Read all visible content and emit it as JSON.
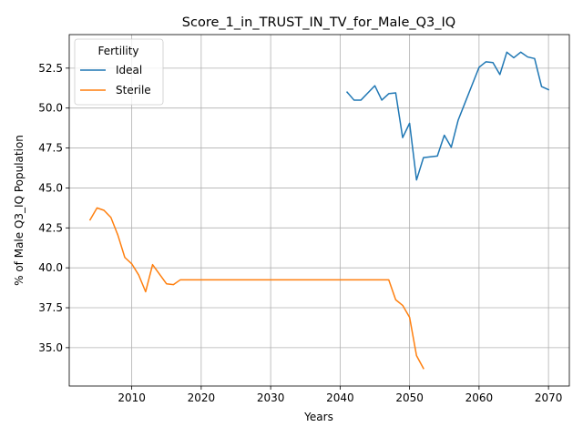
{
  "chart_data": {
    "type": "line",
    "title": "Score_1_in_TRUST_IN_TV_for_Male_Q3_IQ",
    "xlabel": "Years",
    "ylabel": "% of Male Q3_IQ Population",
    "xlim": [
      2001,
      2073
    ],
    "ylim": [
      32.6,
      54.6
    ],
    "xticks": [
      2010,
      2020,
      2030,
      2040,
      2050,
      2060,
      2070
    ],
    "yticks": [
      35.0,
      37.5,
      40.0,
      42.5,
      45.0,
      47.5,
      50.0,
      52.5
    ],
    "ytick_labels": [
      "35.0",
      "37.5",
      "40.0",
      "42.5",
      "45.0",
      "47.5",
      "50.0",
      "52.5"
    ],
    "grid": true,
    "legend": {
      "title": "Fertility",
      "position": "top-left"
    },
    "series": [
      {
        "name": "Ideal",
        "color": "#1f77b4",
        "x": [
          2041,
          2042,
          2043,
          2044,
          2045,
          2046,
          2047,
          2048,
          2049,
          2050,
          2051,
          2052,
          2053,
          2054,
          2055,
          2056,
          2057,
          2058,
          2059,
          2060,
          2061,
          2062,
          2063,
          2064,
          2065,
          2066,
          2067,
          2068,
          2069,
          2070
        ],
        "y": [
          51.0,
          50.5,
          50.5,
          50.95,
          51.4,
          50.5,
          50.9,
          50.95,
          48.15,
          49.05,
          45.5,
          46.9,
          46.95,
          47.0,
          48.3,
          47.55,
          49.25,
          50.35,
          51.45,
          52.55,
          52.9,
          52.85,
          52.1,
          53.5,
          53.15,
          53.5,
          53.2,
          53.1,
          51.35,
          51.15
        ]
      },
      {
        "name": "Sterile",
        "color": "#ff7f0e",
        "x": [
          2004,
          2005,
          2006,
          2007,
          2008,
          2009,
          2010,
          2011,
          2012,
          2013,
          2014,
          2015,
          2016,
          2017,
          2018,
          2019,
          2020,
          2021,
          2022,
          2023,
          2024,
          2025,
          2026,
          2027,
          2028,
          2029,
          2030,
          2031,
          2032,
          2033,
          2034,
          2035,
          2036,
          2037,
          2038,
          2039,
          2040,
          2041,
          2042,
          2043,
          2044,
          2045,
          2046,
          2047,
          2048,
          2049,
          2050,
          2051,
          2052
        ],
        "y": [
          43.0,
          43.75,
          43.6,
          43.15,
          42.05,
          40.65,
          40.25,
          39.55,
          38.5,
          40.2,
          39.6,
          39.0,
          38.95,
          39.25,
          39.25,
          39.25,
          39.25,
          39.25,
          39.25,
          39.25,
          39.25,
          39.25,
          39.25,
          39.25,
          39.25,
          39.25,
          39.25,
          39.25,
          39.25,
          39.25,
          39.25,
          39.25,
          39.25,
          39.25,
          39.25,
          39.25,
          39.25,
          39.25,
          39.25,
          39.25,
          39.25,
          39.25,
          39.25,
          39.25,
          38.0,
          37.65,
          36.9,
          34.5,
          33.7
        ]
      }
    ]
  }
}
